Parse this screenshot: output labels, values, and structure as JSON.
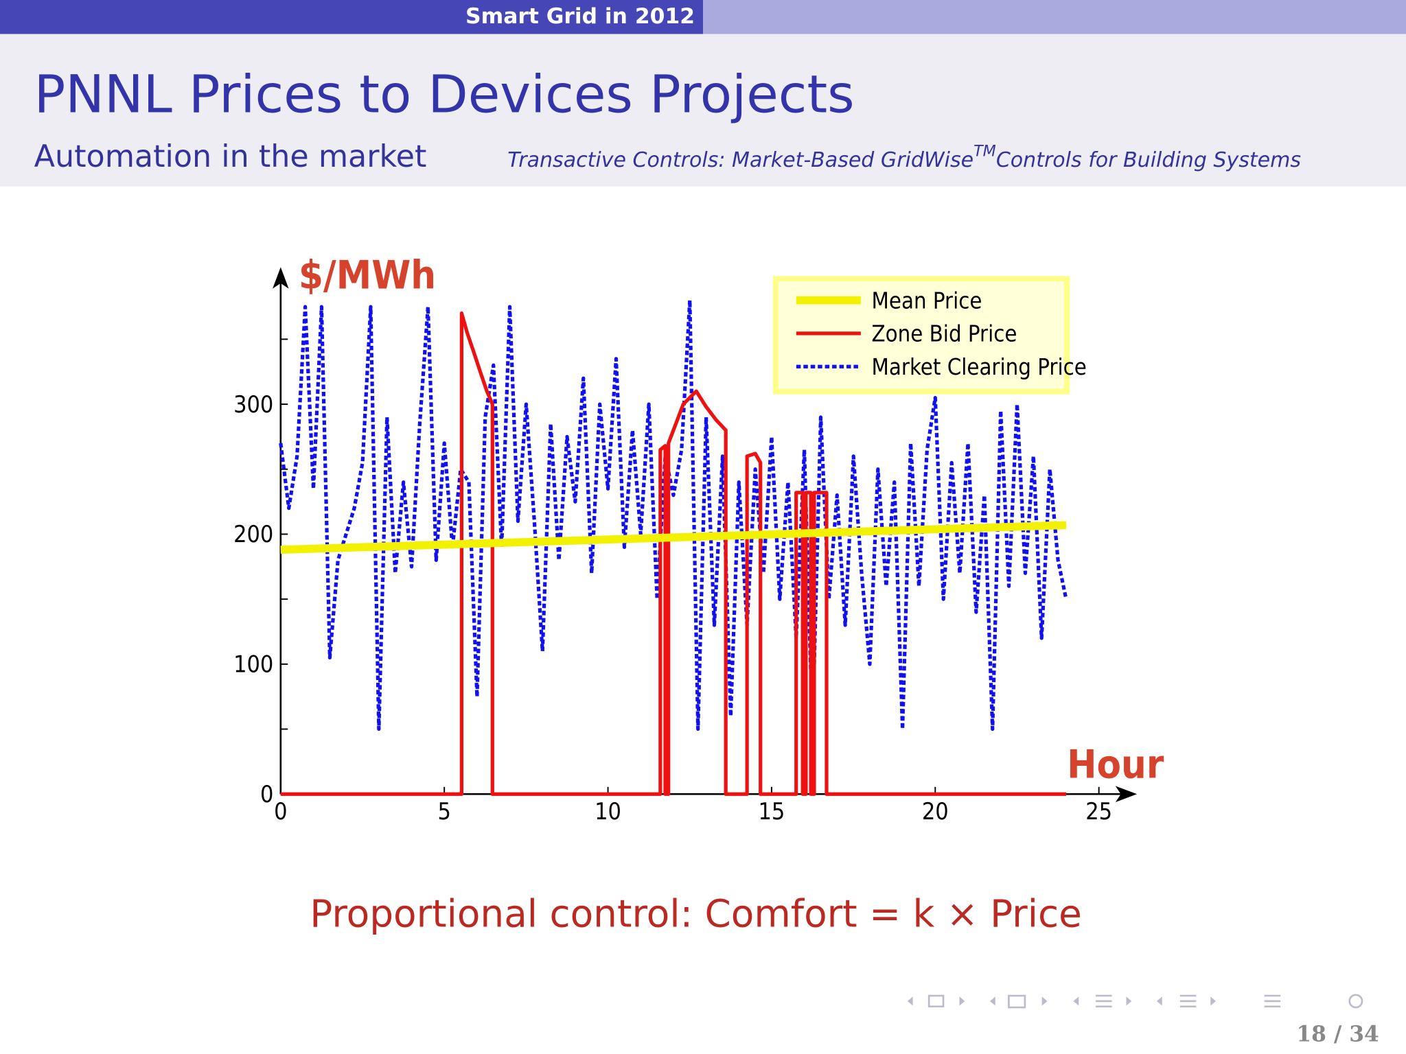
{
  "header": {
    "section": "Smart Grid in 2012"
  },
  "title": "PNNL Prices to Devices Projects",
  "subtitle": "Automation in the market",
  "reference": {
    "pre": "Transactive Controls: Market-Based GridWise",
    "tm": "TM",
    "post": "Controls for Building Systems"
  },
  "caption": "Proportional control: Comfort = k × Price",
  "page_number": "18 / 34",
  "chart_data": {
    "type": "line",
    "y_label": "$/MWh",
    "x_label": "Hour",
    "xlim": [
      0,
      26
    ],
    "ylim": [
      0,
      400
    ],
    "xticks": [
      0,
      5,
      10,
      15,
      20,
      25
    ],
    "yticks": [
      0,
      100,
      200,
      300
    ],
    "yminor_ticks": [
      50,
      150,
      250,
      350
    ],
    "legend": "upper right",
    "series": [
      {
        "name": "Mean Price",
        "color": "#f2f200",
        "style": "solid",
        "x": [
          0,
          24
        ],
        "values": [
          188,
          207
        ]
      },
      {
        "name": "Zone Bid Price",
        "color": "#ee1111",
        "style": "solid",
        "x": [
          0,
          5.53,
          5.53,
          5.7,
          5.9,
          6.1,
          6.3,
          6.47,
          6.47,
          11.6,
          11.6,
          11.75,
          11.75,
          11.85,
          11.85,
          12.3,
          12.7,
          13.0,
          13.3,
          13.6,
          13.6,
          14.25,
          14.25,
          14.5,
          14.66,
          14.66,
          15.75,
          15.75,
          15.95,
          15.95,
          16.05,
          16.05,
          16.2,
          16.2,
          16.3,
          16.3,
          16.68,
          16.68,
          24
        ],
        "values": [
          0,
          0,
          370,
          355,
          340,
          325,
          310,
          300,
          0,
          0,
          265,
          268,
          0,
          0,
          270,
          300,
          310,
          298,
          288,
          280,
          0,
          0,
          260,
          262,
          255,
          0,
          0,
          232,
          232,
          0,
          0,
          232,
          232,
          0,
          0,
          232,
          232,
          0,
          0
        ]
      },
      {
        "name": "Market Clearing Price",
        "color": "#1111ee",
        "style": "dashed",
        "x": [
          0,
          0.25,
          0.5,
          0.75,
          1,
          1.25,
          1.5,
          1.75,
          2,
          2.25,
          2.5,
          2.75,
          3,
          3.25,
          3.5,
          3.75,
          4,
          4.25,
          4.5,
          4.75,
          5,
          5.25,
          5.5,
          5.75,
          6,
          6.25,
          6.5,
          6.75,
          7,
          7.25,
          7.5,
          7.75,
          8,
          8.25,
          8.5,
          8.75,
          9,
          9.25,
          9.5,
          9.75,
          10,
          10.25,
          10.5,
          10.75,
          11,
          11.25,
          11.5,
          11.75,
          12,
          12.25,
          12.5,
          12.75,
          13,
          13.25,
          13.5,
          13.75,
          14,
          14.25,
          14.5,
          14.75,
          15,
          15.25,
          15.5,
          15.75,
          16,
          16.25,
          16.5,
          16.75,
          17,
          17.25,
          17.5,
          17.75,
          18,
          18.25,
          18.5,
          18.75,
          19,
          19.25,
          19.5,
          19.75,
          20,
          20.25,
          20.5,
          20.75,
          21,
          21.25,
          21.5,
          21.75,
          22,
          22.25,
          22.5,
          22.75,
          23,
          23.25,
          23.5,
          23.75,
          24
        ],
        "values": [
          270,
          220,
          260,
          375,
          235,
          375,
          105,
          180,
          200,
          220,
          255,
          375,
          50,
          290,
          170,
          240,
          175,
          285,
          375,
          180,
          270,
          190,
          250,
          240,
          75,
          290,
          330,
          190,
          375,
          210,
          300,
          210,
          110,
          285,
          180,
          275,
          225,
          320,
          170,
          300,
          235,
          335,
          190,
          280,
          200,
          300,
          150,
          260,
          230,
          265,
          380,
          50,
          290,
          130,
          260,
          60,
          240,
          130,
          250,
          170,
          275,
          150,
          240,
          120,
          265,
          50,
          290,
          150,
          230,
          130,
          260,
          170,
          100,
          250,
          160,
          240,
          50,
          270,
          160,
          265,
          305,
          150,
          255,
          170,
          270,
          140,
          230,
          50,
          295,
          160,
          300,
          170,
          260,
          120,
          250,
          180,
          150
        ]
      }
    ]
  }
}
